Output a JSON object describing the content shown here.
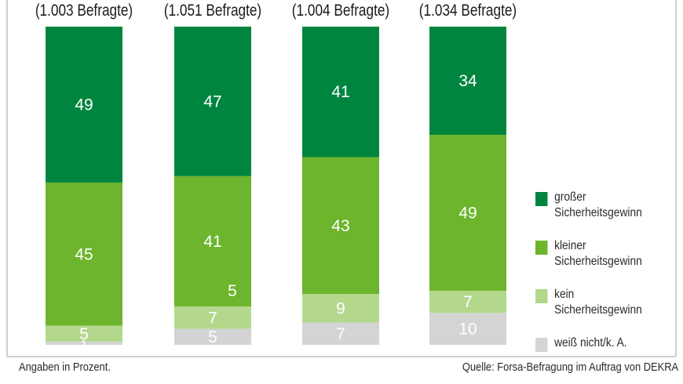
{
  "chart_data": {
    "type": "stacked-bar",
    "categories": [
      "(1.003 Befragte)",
      "(1.051 Befragte)",
      "(1.004 Befragte)",
      "(1.034 Befragte)"
    ],
    "series": [
      {
        "name": "großer Sicherheitsgewinn",
        "color": "#00853f",
        "values": [
          49,
          47,
          41,
          34
        ]
      },
      {
        "name": "kleiner Sicherheitsgewinn",
        "color": "#6cb52d",
        "values": [
          45,
          41,
          43,
          49
        ]
      },
      {
        "name": "kein Sicherheitsgewinn",
        "color": "#b3d88c",
        "values": [
          5,
          7,
          9,
          7
        ]
      },
      {
        "name": "weiß nicht/k. A.",
        "color": "#d4d4d4",
        "values": [
          1,
          5,
          7,
          10
        ]
      }
    ],
    "extra_labels": [
      {
        "category_index": 1,
        "text": "5"
      }
    ],
    "ylim": [
      0,
      100
    ],
    "unit_note": "Angaben in Prozent."
  },
  "legend": {
    "items": [
      {
        "label": "großer\nSicherheitsgewinn",
        "line1": "großer",
        "line2": "Sicherheitsgewinn"
      },
      {
        "label": "kleiner\nSicherheitsgewinn",
        "line1": "kleiner",
        "line2": "Sicherheitsgewinn"
      },
      {
        "label": "kein\nSicherheitsgewinn",
        "line1": "kein",
        "line2": "Sicherheitsgewinn"
      },
      {
        "label": "weiß nicht/k. A.",
        "line1": "weiß nicht/k. A.",
        "line2": ""
      }
    ]
  },
  "footer": {
    "note": "Angaben in Prozent.",
    "source": "Quelle: Forsa-Befragung im Auftrag von DEKRA"
  }
}
